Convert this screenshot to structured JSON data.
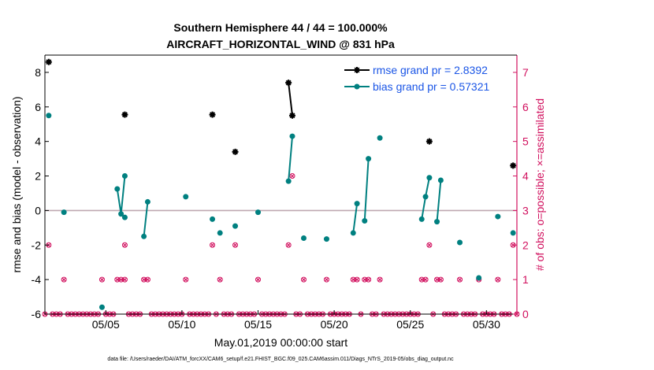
{
  "chart_data": {
    "type": "line",
    "title": "Southern Hemisphere 44 / 44 = 100.000%",
    "subtitle": "AIRCRAFT_HORIZONTAL_WIND @ 831 hPa",
    "xlabel": "May.01,2019 00:00:00 start",
    "ylabel": "rmse and bias (model - observation)",
    "ylabel_right": "# of obs: o=possible; ×=assimilated",
    "xlim": [
      1.0,
      32.0
    ],
    "ylim": [
      -6,
      9
    ],
    "ylim_right": [
      0,
      7.5
    ],
    "x_ticks": [
      {
        "value": 5,
        "label": "05/05"
      },
      {
        "value": 10,
        "label": "05/10"
      },
      {
        "value": 15,
        "label": "05/15"
      },
      {
        "value": 20,
        "label": "05/20"
      },
      {
        "value": 25,
        "label": "05/25"
      },
      {
        "value": 30,
        "label": "05/30"
      }
    ],
    "y_ticks": [
      {
        "value": -6,
        "label": "-6"
      },
      {
        "value": -4,
        "label": "-4"
      },
      {
        "value": -2,
        "label": "-2"
      },
      {
        "value": 0,
        "label": "0"
      },
      {
        "value": 2,
        "label": "2"
      },
      {
        "value": 4,
        "label": "4"
      },
      {
        "value": 6,
        "label": "6"
      },
      {
        "value": 8,
        "label": "8"
      }
    ],
    "y_ticks_right": [
      {
        "value": 0,
        "label": "0"
      },
      {
        "value": 1,
        "label": "1"
      },
      {
        "value": 2,
        "label": "2"
      },
      {
        "value": 3,
        "label": "3"
      },
      {
        "value": 4,
        "label": "4"
      },
      {
        "value": 5,
        "label": "5"
      },
      {
        "value": 6,
        "label": "6"
      },
      {
        "value": 7,
        "label": "7"
      }
    ],
    "zero_line": 0,
    "series": [
      {
        "name": "rmse",
        "legend": "rmse grand pr = 2.8392",
        "color": "#000000",
        "points": [
          [
            1.25,
            8.6
          ],
          [
            6.25,
            5.55
          ],
          [
            12.0,
            5.55
          ],
          [
            13.5,
            3.4
          ],
          [
            17.0,
            7.4
          ],
          [
            17.25,
            5.5
          ],
          [
            26.25,
            4.0
          ],
          [
            31.75,
            2.6
          ]
        ],
        "segments": [
          [
            [
              17.0,
              7.4
            ],
            [
              17.25,
              5.5
            ]
          ]
        ]
      },
      {
        "name": "bias",
        "legend": "bias grand pr = 0.57321",
        "color": "#008080",
        "points": [
          [
            1.25,
            5.5
          ],
          [
            2.25,
            -0.1
          ],
          [
            4.75,
            -5.6
          ],
          [
            5.75,
            1.25
          ],
          [
            6.0,
            -0.2
          ],
          [
            6.25,
            2.0
          ],
          [
            6.25,
            -0.4
          ],
          [
            7.5,
            -1.5
          ],
          [
            7.75,
            0.5
          ],
          [
            10.25,
            0.8
          ],
          [
            12.0,
            -0.5
          ],
          [
            12.5,
            -1.3
          ],
          [
            13.5,
            -0.9
          ],
          [
            15.0,
            -0.1
          ],
          [
            17.0,
            1.7
          ],
          [
            17.25,
            4.3
          ],
          [
            18.0,
            -1.6
          ],
          [
            19.5,
            -1.65
          ],
          [
            21.25,
            -1.3
          ],
          [
            21.5,
            0.4
          ],
          [
            22.0,
            -0.6
          ],
          [
            22.25,
            3.0
          ],
          [
            23.0,
            4.2
          ],
          [
            25.75,
            -0.5
          ],
          [
            26.0,
            0.8
          ],
          [
            26.25,
            1.9
          ],
          [
            26.75,
            -0.65
          ],
          [
            27.0,
            1.75
          ],
          [
            28.25,
            -1.85
          ],
          [
            29.5,
            -3.9
          ],
          [
            30.75,
            -0.35
          ],
          [
            31.75,
            -1.3
          ]
        ],
        "segments": [
          [
            [
              5.75,
              1.25
            ],
            [
              6.0,
              -0.2
            ],
            [
              6.25,
              2.0
            ]
          ],
          [
            [
              7.5,
              -1.5
            ],
            [
              7.75,
              0.5
            ]
          ],
          [
            [
              17.0,
              1.7
            ],
            [
              17.25,
              4.3
            ]
          ],
          [
            [
              21.25,
              -1.3
            ],
            [
              21.5,
              0.4
            ]
          ],
          [
            [
              22.0,
              -0.6
            ],
            [
              22.25,
              3.0
            ]
          ],
          [
            [
              25.75,
              -0.5
            ],
            [
              26.0,
              0.8
            ],
            [
              26.25,
              1.9
            ]
          ],
          [
            [
              26.75,
              -0.65
            ],
            [
              27.0,
              1.75
            ]
          ]
        ]
      }
    ],
    "obs_possible": {
      "color": "#d1105e",
      "points": [
        [
          1.25,
          2
        ],
        [
          2.25,
          1
        ],
        [
          4.75,
          1
        ],
        [
          5.75,
          1
        ],
        [
          6.0,
          1
        ],
        [
          6.25,
          1
        ],
        [
          7.5,
          1
        ],
        [
          7.75,
          1
        ],
        [
          6.25,
          2
        ],
        [
          10.25,
          1
        ],
        [
          12.0,
          2
        ],
        [
          12.5,
          1
        ],
        [
          13.5,
          2
        ],
        [
          15.0,
          1
        ],
        [
          17.0,
          2
        ],
        [
          17.25,
          4
        ],
        [
          18.0,
          1
        ],
        [
          19.5,
          1
        ],
        [
          21.25,
          1
        ],
        [
          21.5,
          1
        ],
        [
          22.0,
          1
        ],
        [
          22.25,
          1
        ],
        [
          23.0,
          1
        ],
        [
          25.75,
          1
        ],
        [
          26.0,
          1
        ],
        [
          26.25,
          2
        ],
        [
          26.75,
          1
        ],
        [
          27.0,
          1
        ],
        [
          28.25,
          1
        ],
        [
          29.5,
          1
        ],
        [
          30.75,
          1
        ],
        [
          31.75,
          2
        ]
      ],
      "zero_count_every": 0.25
    }
  },
  "footnote": "data file: /Users/raeder/DAI/ATM_forcXX/CAM6_setup/f.e21.FHIST_BGC.f09_025.CAM6assim.011/Diags_NTrS_2019-05/obs_diag_output.nc"
}
